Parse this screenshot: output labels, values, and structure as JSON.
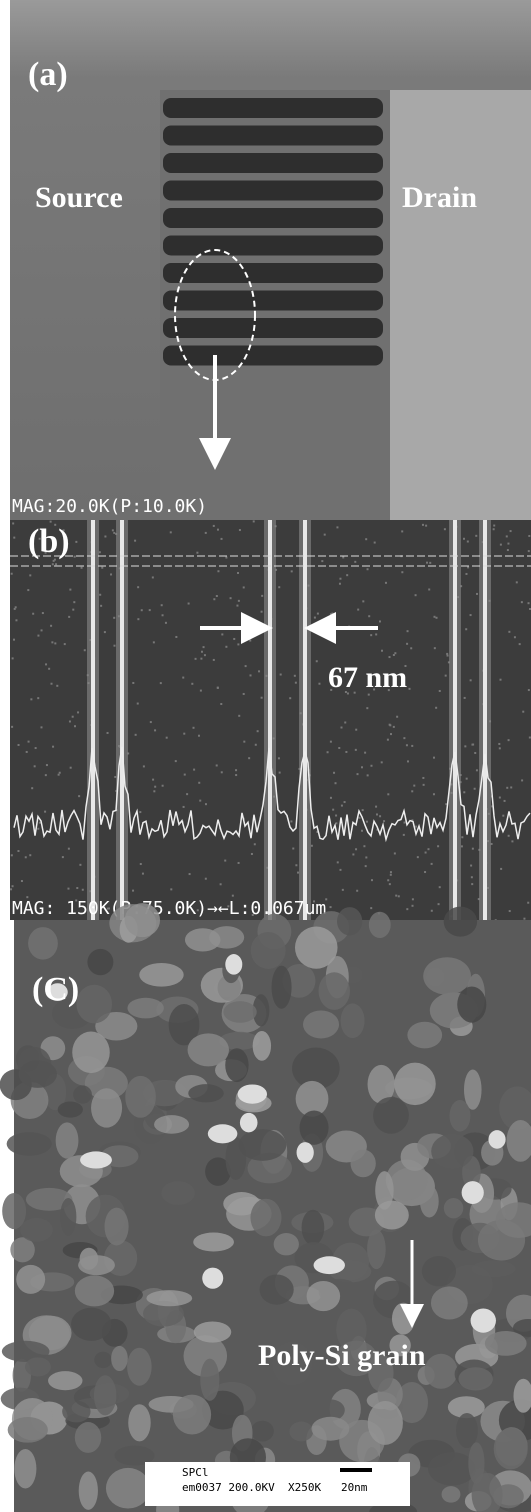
{
  "panels": [
    {
      "label": "(a)",
      "texts": [
        "Source",
        "Drain"
      ],
      "footer": "MAG:20.0K(P:10.0K)"
    },
    {
      "label": "(b)",
      "annotation": "67 nm",
      "footer": "MAG: 150K(P:75.0K)→←L:0.067um"
    },
    {
      "label": "(C)",
      "annotation": "Poly-Si grain",
      "footer_lines": [
        "SPCl",
        "em0037 200.0KV  X250K   20nm"
      ]
    }
  ]
}
